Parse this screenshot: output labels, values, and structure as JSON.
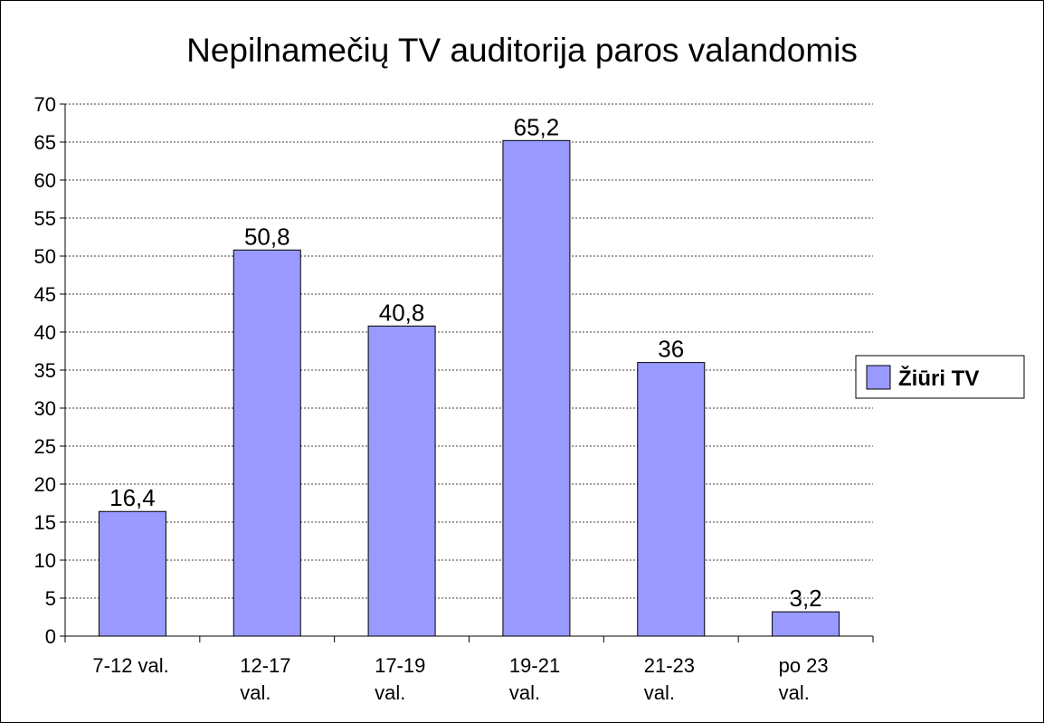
{
  "chart_data": {
    "type": "bar",
    "title": "Nepilnamečių TV auditorija paros valandomis",
    "categories": [
      "7-12 val.",
      "12-17\nval.",
      "17-19\nval.",
      "19-21\nval.",
      "21-23\nval.",
      "po 23\nval."
    ],
    "series": [
      {
        "name": "Žiūri TV",
        "color": "#9999ff",
        "values": [
          16.4,
          50.8,
          40.8,
          65.2,
          36,
          3.2
        ],
        "value_labels": [
          "16,4",
          "50,8",
          "40,8",
          "65,2",
          "36",
          "3,2"
        ]
      }
    ],
    "ylim": [
      0,
      70
    ],
    "yticks": [
      0,
      5,
      10,
      15,
      20,
      25,
      30,
      35,
      40,
      45,
      50,
      55,
      60,
      65,
      70
    ],
    "grid": true,
    "legend": "right"
  }
}
